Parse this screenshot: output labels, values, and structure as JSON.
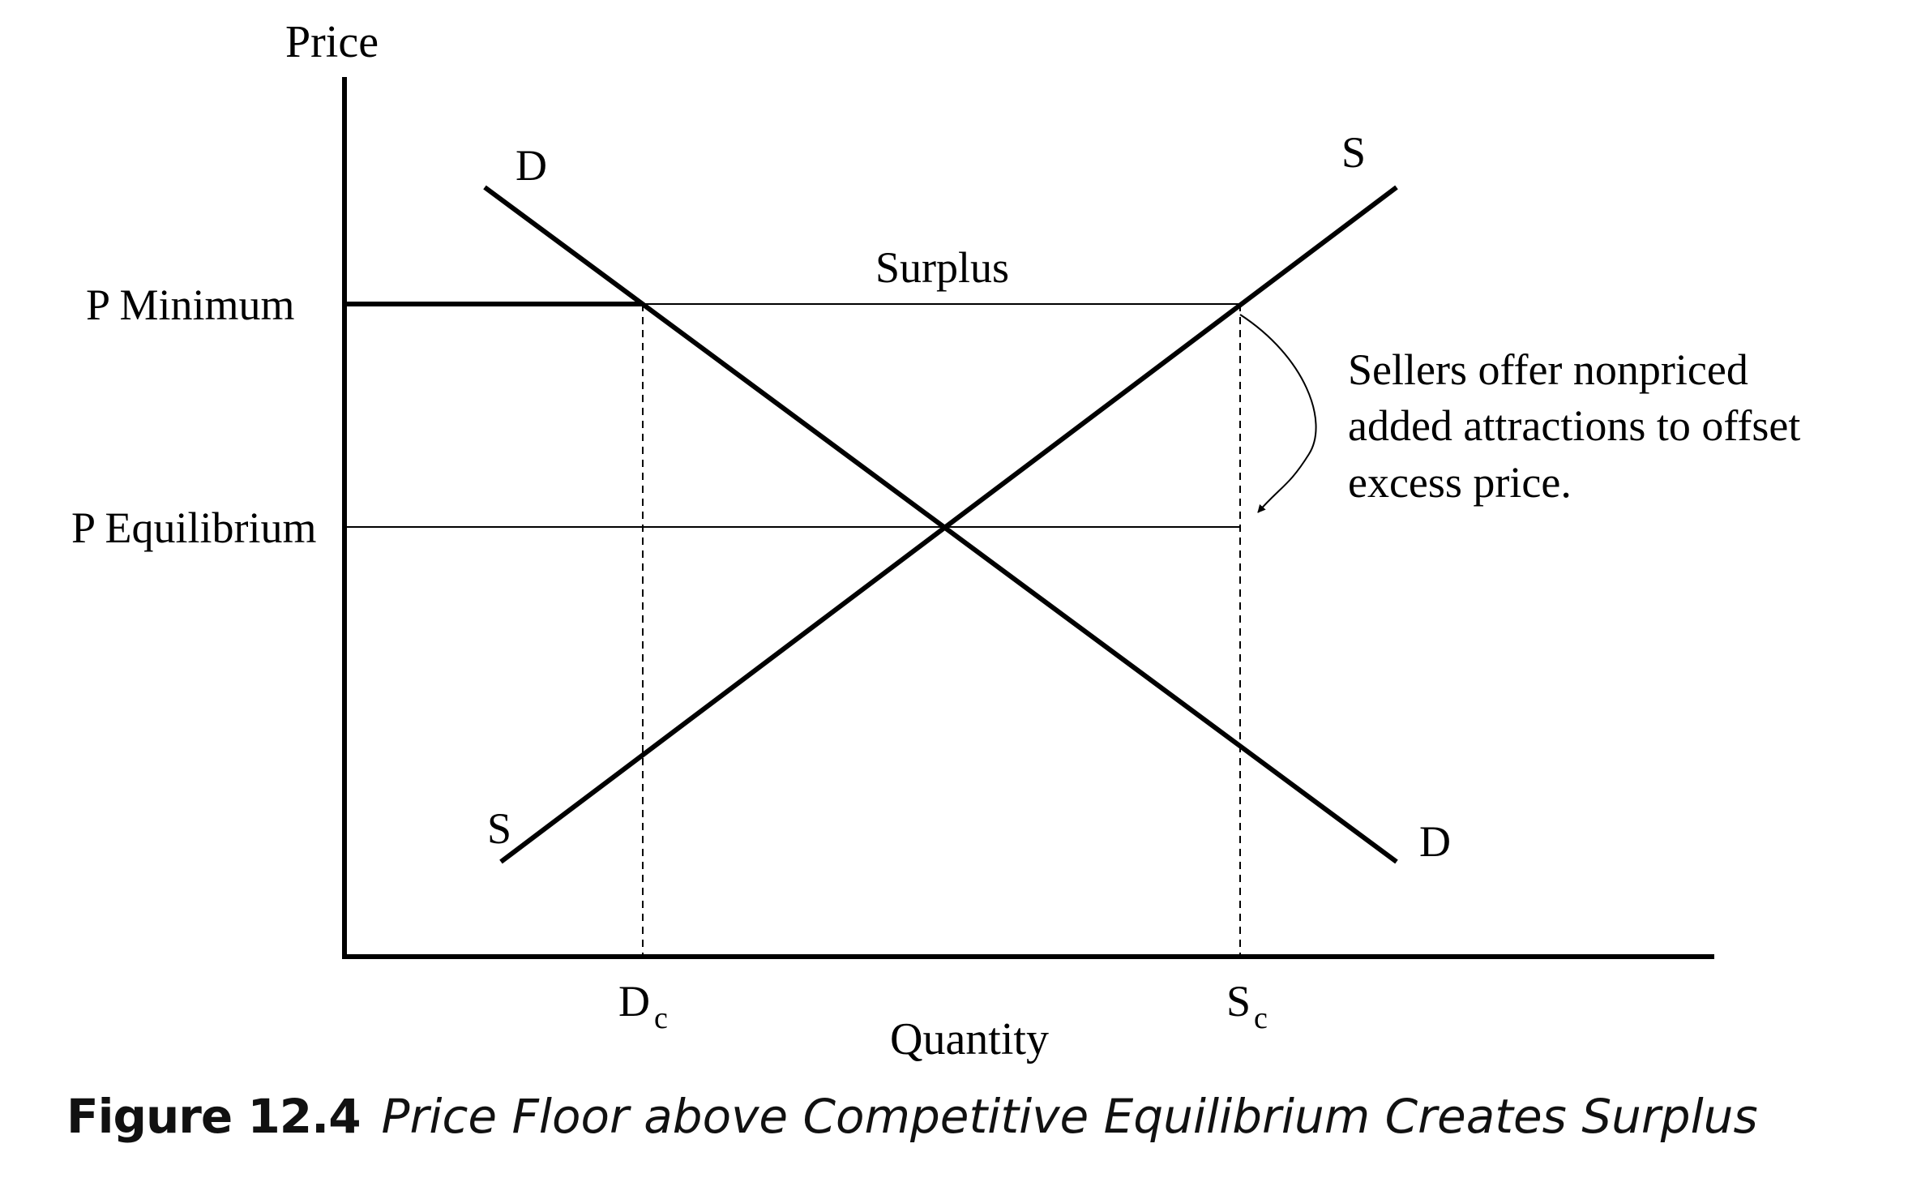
{
  "axes": {
    "y_label": "Price",
    "x_label": "Quantity"
  },
  "price_levels": {
    "minimum": "P Minimum",
    "equilibrium": "P Equilibrium"
  },
  "curves": {
    "demand_top": "D",
    "demand_bottom": "D",
    "supply_top": "S",
    "supply_bottom": "S"
  },
  "quantities": {
    "demand": {
      "main": "D",
      "sub": "c"
    },
    "supply": {
      "main": "S",
      "sub": "c"
    }
  },
  "surplus_label": "Surplus",
  "annotation": [
    "Sellers offer nonpriced",
    "added attractions to offset",
    "excess price."
  ],
  "caption": {
    "label": "Figure 12.4",
    "title": "Price Floor above Competitive Equilibrium Creates Surplus"
  }
}
